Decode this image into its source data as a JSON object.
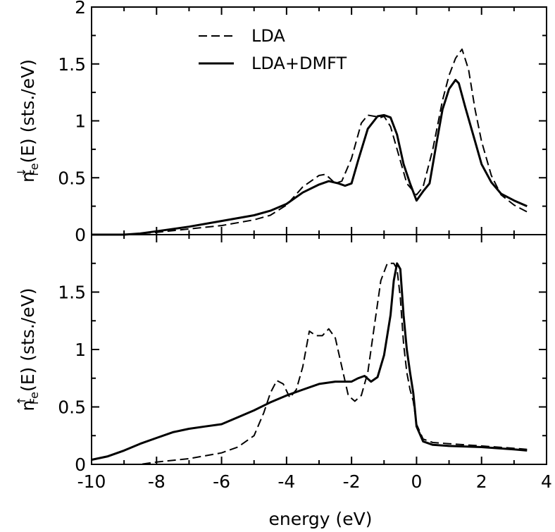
{
  "chart_data": [
    {
      "type": "line",
      "panel": "top",
      "ylabel_main": "n",
      "ylabel_sub": "Fe",
      "ylabel_sup": "↓",
      "ylabel_rest": "(E) (sts./eV)",
      "xlim": [
        -10,
        4
      ],
      "ylim": [
        0,
        2
      ],
      "yticks": [
        0,
        0.5,
        1,
        1.5,
        2
      ],
      "ytick_labels": [
        "0",
        "0.5",
        "1",
        "1.5",
        "2"
      ],
      "legend_position": "top-left",
      "series": [
        {
          "name": "LDA",
          "style": "dashed",
          "x": [
            -10,
            -9,
            -8.5,
            -8,
            -7,
            -6,
            -5,
            -4.5,
            -4,
            -3.5,
            -3,
            -2.8,
            -2.5,
            -2.3,
            -2,
            -1.7,
            -1.5,
            -1.3,
            -1.1,
            -1.0,
            -0.8,
            -0.5,
            -0.3,
            0,
            0.2,
            0.5,
            0.8,
            1.0,
            1.2,
            1.4,
            1.6,
            1.8,
            2.0,
            2.3,
            2.6,
            3.0,
            3.4
          ],
          "y": [
            0,
            0,
            0.01,
            0.02,
            0.05,
            0.08,
            0.13,
            0.17,
            0.26,
            0.42,
            0.52,
            0.53,
            0.45,
            0.47,
            0.67,
            0.98,
            1.05,
            1.04,
            1.03,
            1.04,
            0.95,
            0.65,
            0.45,
            0.35,
            0.42,
            0.75,
            1.18,
            1.4,
            1.55,
            1.63,
            1.45,
            1.1,
            0.82,
            0.52,
            0.35,
            0.26,
            0.2
          ]
        },
        {
          "name": "LDA+DMFT",
          "style": "solid",
          "x": [
            -10,
            -9,
            -8.5,
            -8,
            -7,
            -6,
            -5,
            -4.5,
            -4,
            -3.5,
            -3,
            -2.7,
            -2.4,
            -2.2,
            -2.0,
            -1.8,
            -1.5,
            -1.2,
            -1.0,
            -0.8,
            -0.6,
            -0.4,
            -0.2,
            0,
            0.2,
            0.4,
            0.6,
            0.8,
            1.0,
            1.2,
            1.3,
            1.5,
            1.8,
            2.0,
            2.3,
            2.6,
            3.0,
            3.4
          ],
          "y": [
            0,
            0,
            0.01,
            0.03,
            0.07,
            0.12,
            0.17,
            0.21,
            0.27,
            0.37,
            0.44,
            0.47,
            0.45,
            0.43,
            0.45,
            0.65,
            0.93,
            1.04,
            1.05,
            1.03,
            0.88,
            0.62,
            0.45,
            0.3,
            0.38,
            0.45,
            0.78,
            1.1,
            1.28,
            1.36,
            1.33,
            1.12,
            0.82,
            0.62,
            0.46,
            0.36,
            0.3,
            0.25
          ]
        }
      ]
    },
    {
      "type": "line",
      "panel": "bottom",
      "ylabel_main": "n",
      "ylabel_sub": "Fe",
      "ylabel_sup": "↑",
      "ylabel_rest": "(E) (sts./eV)",
      "xlabel": "energy (eV)",
      "xlim": [
        -10,
        4
      ],
      "ylim": [
        0,
        2
      ],
      "yticks": [
        0,
        0.5,
        1,
        1.5
      ],
      "ytick_labels": [
        "0",
        "0.5",
        "1",
        "1.5"
      ],
      "xticks": [
        -10,
        -8,
        -6,
        -4,
        -2,
        0,
        2,
        4
      ],
      "xtick_labels": [
        "-10",
        "-8",
        "-6",
        "-4",
        "-2",
        "0",
        "2",
        "4"
      ],
      "series": [
        {
          "name": "LDA",
          "style": "dashed",
          "x": [
            -10,
            -9,
            -8.5,
            -8,
            -7,
            -6,
            -5.5,
            -5,
            -4.7,
            -4.5,
            -4.3,
            -4.1,
            -3.9,
            -3.7,
            -3.5,
            -3.3,
            -3.1,
            -2.9,
            -2.7,
            -2.5,
            -2.3,
            -2.1,
            -1.9,
            -1.7,
            -1.5,
            -1.3,
            -1.1,
            -0.9,
            -0.7,
            -0.6,
            -0.5,
            -0.4,
            -0.3,
            -0.2,
            -0.1,
            0,
            0.2,
            0.5,
            1,
            2,
            3,
            3.4
          ],
          "y": [
            0,
            0,
            0.0,
            0.02,
            0.05,
            0.1,
            0.15,
            0.25,
            0.45,
            0.62,
            0.73,
            0.7,
            0.58,
            0.65,
            0.85,
            1.16,
            1.12,
            1.12,
            1.18,
            1.1,
            0.85,
            0.6,
            0.55,
            0.6,
            0.8,
            1.2,
            1.6,
            1.75,
            1.75,
            1.7,
            1.45,
            1.05,
            0.8,
            0.65,
            0.55,
            0.35,
            0.22,
            0.19,
            0.18,
            0.16,
            0.14,
            0.13
          ]
        },
        {
          "name": "LDA+DMFT",
          "style": "solid",
          "x": [
            -10,
            -9.5,
            -9,
            -8.5,
            -8,
            -7.5,
            -7,
            -6.5,
            -6,
            -5.5,
            -5,
            -4.5,
            -4,
            -3.5,
            -3,
            -2.5,
            -2,
            -1.8,
            -1.6,
            -1.4,
            -1.2,
            -1.0,
            -0.8,
            -0.7,
            -0.6,
            -0.5,
            -0.4,
            -0.3,
            -0.2,
            -0.1,
            0,
            0.2,
            0.5,
            1,
            2,
            3,
            3.4
          ],
          "y": [
            0.04,
            0.07,
            0.12,
            0.18,
            0.23,
            0.28,
            0.31,
            0.33,
            0.35,
            0.41,
            0.47,
            0.54,
            0.6,
            0.65,
            0.7,
            0.72,
            0.72,
            0.75,
            0.77,
            0.72,
            0.76,
            0.95,
            1.3,
            1.6,
            1.75,
            1.7,
            1.3,
            1.0,
            0.8,
            0.62,
            0.33,
            0.2,
            0.17,
            0.16,
            0.15,
            0.13,
            0.12
          ]
        }
      ]
    }
  ]
}
